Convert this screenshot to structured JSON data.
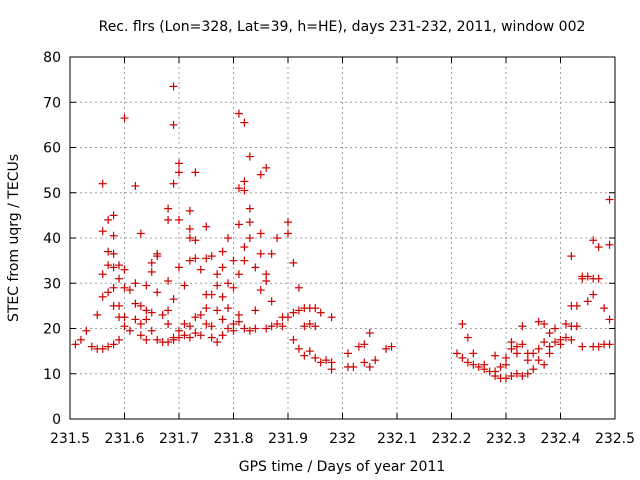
{
  "chart_data": {
    "type": "scatter",
    "title": "Rec. flrs (Lon=328, Lat=39, h=HE), days 231-232, 2011, window 002",
    "xlabel": "GPS time / Days of year 2011",
    "ylabel": "STEC from uqrg / TECUs",
    "xlim": [
      231.5,
      232.5
    ],
    "ylim": [
      0,
      80
    ],
    "xticks": [
      "231.5",
      "231.6",
      "231.7",
      "231.8",
      "231.9",
      "232",
      "232.1",
      "232.2",
      "232.3",
      "232.4",
      "232.5"
    ],
    "yticks": [
      "0",
      "10",
      "20",
      "30",
      "40",
      "50",
      "60",
      "70",
      "80"
    ],
    "grid": true,
    "marker": "plus",
    "marker_color": "#cc0000",
    "points": [
      [
        231.51,
        16.5
      ],
      [
        231.52,
        17.5
      ],
      [
        231.53,
        19.5
      ],
      [
        231.54,
        16
      ],
      [
        231.55,
        23
      ],
      [
        231.55,
        15.5
      ],
      [
        231.56,
        15.5
      ],
      [
        231.56,
        27
      ],
      [
        231.56,
        32
      ],
      [
        231.56,
        41.5
      ],
      [
        231.56,
        52
      ],
      [
        231.57,
        16
      ],
      [
        231.57,
        28
      ],
      [
        231.57,
        34
      ],
      [
        231.57,
        37
      ],
      [
        231.57,
        44
      ],
      [
        231.58,
        16.5
      ],
      [
        231.58,
        25
      ],
      [
        231.58,
        29
      ],
      [
        231.58,
        33.5
      ],
      [
        231.58,
        36.5
      ],
      [
        231.58,
        40.5
      ],
      [
        231.58,
        45
      ],
      [
        231.59,
        17.5
      ],
      [
        231.59,
        22.5
      ],
      [
        231.59,
        25
      ],
      [
        231.59,
        31
      ],
      [
        231.59,
        34
      ],
      [
        231.6,
        66.5
      ],
      [
        231.6,
        22.5
      ],
      [
        231.6,
        33
      ],
      [
        231.6,
        20.5
      ],
      [
        231.6,
        29
      ],
      [
        231.61,
        28.5
      ],
      [
        231.61,
        19.5
      ],
      [
        231.62,
        22
      ],
      [
        231.62,
        25.5
      ],
      [
        231.62,
        30
      ],
      [
        231.62,
        51.5
      ],
      [
        231.63,
        21
      ],
      [
        231.63,
        25
      ],
      [
        231.63,
        18.5
      ],
      [
        231.63,
        41
      ],
      [
        231.64,
        24
      ],
      [
        231.64,
        29.5
      ],
      [
        231.64,
        17.5
      ],
      [
        231.64,
        22
      ],
      [
        231.65,
        32.5
      ],
      [
        231.65,
        34.5
      ],
      [
        231.65,
        19.5
      ],
      [
        231.65,
        23.5
      ],
      [
        231.66,
        28
      ],
      [
        231.66,
        17.5
      ],
      [
        231.66,
        36
      ],
      [
        231.66,
        36.5
      ],
      [
        231.67,
        17
      ],
      [
        231.67,
        23
      ],
      [
        231.68,
        46.5
      ],
      [
        231.68,
        44
      ],
      [
        231.68,
        17
      ],
      [
        231.68,
        21
      ],
      [
        231.68,
        24
      ],
      [
        231.68,
        30.5
      ],
      [
        231.69,
        73.5
      ],
      [
        231.69,
        65
      ],
      [
        231.69,
        52
      ],
      [
        231.69,
        18
      ],
      [
        231.69,
        26.5
      ],
      [
        231.69,
        17.5
      ],
      [
        231.7,
        56.5
      ],
      [
        231.7,
        54.5
      ],
      [
        231.7,
        44
      ],
      [
        231.7,
        33.5
      ],
      [
        231.7,
        19.5
      ],
      [
        231.7,
        18
      ],
      [
        231.71,
        18.5
      ],
      [
        231.71,
        21
      ],
      [
        231.71,
        29.5
      ],
      [
        231.72,
        46
      ],
      [
        231.72,
        42
      ],
      [
        231.72,
        40
      ],
      [
        231.72,
        35
      ],
      [
        231.72,
        18
      ],
      [
        231.72,
        20.5
      ],
      [
        231.73,
        54.5
      ],
      [
        231.73,
        39.5
      ],
      [
        231.73,
        35.5
      ],
      [
        231.73,
        19
      ],
      [
        231.73,
        22.5
      ],
      [
        231.74,
        33
      ],
      [
        231.74,
        18.5
      ],
      [
        231.74,
        23
      ],
      [
        231.75,
        42.5
      ],
      [
        231.75,
        35.5
      ],
      [
        231.75,
        27.5
      ],
      [
        231.75,
        21
      ],
      [
        231.75,
        24.5
      ],
      [
        231.76,
        36
      ],
      [
        231.76,
        18
      ],
      [
        231.76,
        27.5
      ],
      [
        231.76,
        20.5
      ],
      [
        231.77,
        32
      ],
      [
        231.77,
        17
      ],
      [
        231.77,
        24
      ],
      [
        231.77,
        29.5
      ],
      [
        231.78,
        37
      ],
      [
        231.78,
        33.5
      ],
      [
        231.78,
        27
      ],
      [
        231.78,
        22
      ],
      [
        231.78,
        18.5
      ],
      [
        231.79,
        40
      ],
      [
        231.79,
        30
      ],
      [
        231.79,
        20
      ],
      [
        231.79,
        24.5
      ],
      [
        231.8,
        35
      ],
      [
        231.8,
        29
      ],
      [
        231.8,
        21
      ],
      [
        231.8,
        19.5
      ],
      [
        231.81,
        67.5
      ],
      [
        231.81,
        51
      ],
      [
        231.81,
        43
      ],
      [
        231.81,
        32
      ],
      [
        231.81,
        21.5
      ],
      [
        231.81,
        23
      ],
      [
        231.82,
        65.5
      ],
      [
        231.82,
        52.5
      ],
      [
        231.82,
        50.5
      ],
      [
        231.82,
        38
      ],
      [
        231.82,
        35
      ],
      [
        231.82,
        20
      ],
      [
        231.83,
        58
      ],
      [
        231.83,
        46.5
      ],
      [
        231.83,
        43.5
      ],
      [
        231.83,
        40
      ],
      [
        231.83,
        19.5
      ],
      [
        231.84,
        20
      ],
      [
        231.84,
        33.5
      ],
      [
        231.84,
        24
      ],
      [
        231.85,
        54
      ],
      [
        231.85,
        41
      ],
      [
        231.85,
        36.5
      ],
      [
        231.85,
        28.5
      ],
      [
        231.86,
        55.5
      ],
      [
        231.86,
        32
      ],
      [
        231.86,
        30.5
      ],
      [
        231.86,
        20
      ],
      [
        231.87,
        36.5
      ],
      [
        231.87,
        20.5
      ],
      [
        231.87,
        26
      ],
      [
        231.88,
        40
      ],
      [
        231.88,
        21
      ],
      [
        231.89,
        22.5
      ],
      [
        231.89,
        20.5
      ],
      [
        231.9,
        43.5
      ],
      [
        231.9,
        41
      ],
      [
        231.9,
        22.5
      ],
      [
        231.91,
        34.5
      ],
      [
        231.91,
        23.5
      ],
      [
        231.91,
        17.5
      ],
      [
        231.92,
        15.5
      ],
      [
        231.92,
        24
      ],
      [
        231.92,
        29
      ],
      [
        231.93,
        24.5
      ],
      [
        231.93,
        14
      ],
      [
        231.93,
        20.5
      ],
      [
        231.94,
        24.5
      ],
      [
        231.94,
        15
      ],
      [
        231.94,
        21
      ],
      [
        231.95,
        24.5
      ],
      [
        231.95,
        13.5
      ],
      [
        231.95,
        20.5
      ],
      [
        231.96,
        12.5
      ],
      [
        231.96,
        23.5
      ],
      [
        231.97,
        13
      ],
      [
        231.98,
        11
      ],
      [
        231.98,
        12.5
      ],
      [
        231.98,
        22.5
      ],
      [
        232.01,
        14.5
      ],
      [
        232.01,
        11.5
      ],
      [
        232.02,
        11.5
      ],
      [
        232.03,
        16
      ],
      [
        232.04,
        12.5
      ],
      [
        232.04,
        16.5
      ],
      [
        232.05,
        19
      ],
      [
        232.05,
        11.5
      ],
      [
        232.06,
        13
      ],
      [
        232.08,
        15.5
      ],
      [
        232.09,
        16
      ],
      [
        232.21,
        14.5
      ],
      [
        232.22,
        21
      ],
      [
        232.22,
        13.5
      ],
      [
        232.23,
        12.5
      ],
      [
        232.23,
        18
      ],
      [
        232.24,
        14.5
      ],
      [
        232.24,
        12
      ],
      [
        232.25,
        11.5
      ],
      [
        232.26,
        11
      ],
      [
        232.26,
        12
      ],
      [
        232.27,
        10.5
      ],
      [
        232.28,
        9.5
      ],
      [
        232.28,
        14
      ],
      [
        232.28,
        10.5
      ],
      [
        232.29,
        9
      ],
      [
        232.29,
        11.5
      ],
      [
        232.3,
        9
      ],
      [
        232.3,
        12
      ],
      [
        232.3,
        13.5
      ],
      [
        232.31,
        15.5
      ],
      [
        232.31,
        17
      ],
      [
        232.31,
        9.5
      ],
      [
        232.32,
        10
      ],
      [
        232.32,
        14.5
      ],
      [
        232.32,
        16
      ],
      [
        232.33,
        9.5
      ],
      [
        232.33,
        20.5
      ],
      [
        232.33,
        16.5
      ],
      [
        232.34,
        10
      ],
      [
        232.34,
        13
      ],
      [
        232.34,
        14.5
      ],
      [
        232.35,
        11
      ],
      [
        232.35,
        14.5
      ],
      [
        232.36,
        21.5
      ],
      [
        232.36,
        13
      ],
      [
        232.36,
        15.5
      ],
      [
        232.37,
        12
      ],
      [
        232.37,
        17
      ],
      [
        232.37,
        21
      ],
      [
        232.38,
        14.5
      ],
      [
        232.38,
        16
      ],
      [
        232.38,
        19
      ],
      [
        232.39,
        17
      ],
      [
        232.39,
        20
      ],
      [
        232.4,
        17.5
      ],
      [
        232.4,
        16.5
      ],
      [
        232.41,
        18
      ],
      [
        232.41,
        21
      ],
      [
        232.42,
        17.5
      ],
      [
        232.42,
        25
      ],
      [
        232.42,
        20.5
      ],
      [
        232.42,
        36
      ],
      [
        232.43,
        25
      ],
      [
        232.43,
        20.5
      ],
      [
        232.44,
        31.5
      ],
      [
        232.44,
        31
      ],
      [
        232.44,
        16
      ],
      [
        232.45,
        31.5
      ],
      [
        232.45,
        26
      ],
      [
        232.46,
        39.5
      ],
      [
        232.46,
        27.5
      ],
      [
        232.46,
        31
      ],
      [
        232.46,
        16
      ],
      [
        232.47,
        16
      ],
      [
        232.47,
        38
      ],
      [
        232.47,
        31
      ],
      [
        232.48,
        16.5
      ],
      [
        232.48,
        24.5
      ],
      [
        232.49,
        38.5
      ],
      [
        232.49,
        22
      ],
      [
        232.49,
        48.5
      ],
      [
        232.49,
        16.5
      ]
    ]
  }
}
